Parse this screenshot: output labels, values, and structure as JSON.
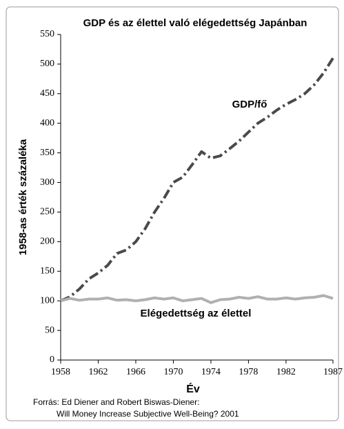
{
  "chart_data": {
    "type": "line",
    "title": "GDP és az élettel való elégedettség Japánban",
    "y_label": "1958-as érték százaléka",
    "x_label": "Év",
    "source": [
      "Forrás: Ed Diener and Robert Biswas-Diener:",
      "Will Money Increase Subjective Well-Being? 2001"
    ],
    "x": [
      1958,
      1959,
      1960,
      1961,
      1962,
      1963,
      1964,
      1965,
      1966,
      1967,
      1968,
      1969,
      1970,
      1971,
      1972,
      1973,
      1974,
      1975,
      1976,
      1977,
      1978,
      1979,
      1980,
      1981,
      1982,
      1983,
      1984,
      1985,
      1986,
      1987
    ],
    "series": [
      {
        "name": "GDP/fő",
        "color": "#4a4a4a",
        "dash": true,
        "values": [
          100,
          107,
          120,
          137,
          147,
          160,
          180,
          186,
          200,
          222,
          250,
          273,
          300,
          309,
          330,
          352,
          341,
          345,
          357,
          370,
          385,
          400,
          410,
          422,
          432,
          440,
          450,
          465,
          485,
          510
        ]
      },
      {
        "name": "Elégedettség az élettel",
        "color": "#b0b0b0",
        "dash": false,
        "values": [
          100,
          104,
          101,
          103,
          103,
          105,
          101,
          102,
          100,
          102,
          105,
          103,
          105,
          100,
          102,
          104,
          97,
          102,
          103,
          106,
          104,
          107,
          103,
          103,
          105,
          103,
          105,
          106,
          109,
          104
        ]
      }
    ],
    "xlim": [
      1958,
      1987
    ],
    "xticks": [
      1958,
      1962,
      1966,
      1970,
      1974,
      1978,
      1982,
      1987
    ],
    "ylim": [
      0,
      550
    ],
    "yticks": [
      0,
      50,
      100,
      150,
      200,
      250,
      300,
      350,
      400,
      450,
      500,
      550
    ],
    "grid": false
  }
}
